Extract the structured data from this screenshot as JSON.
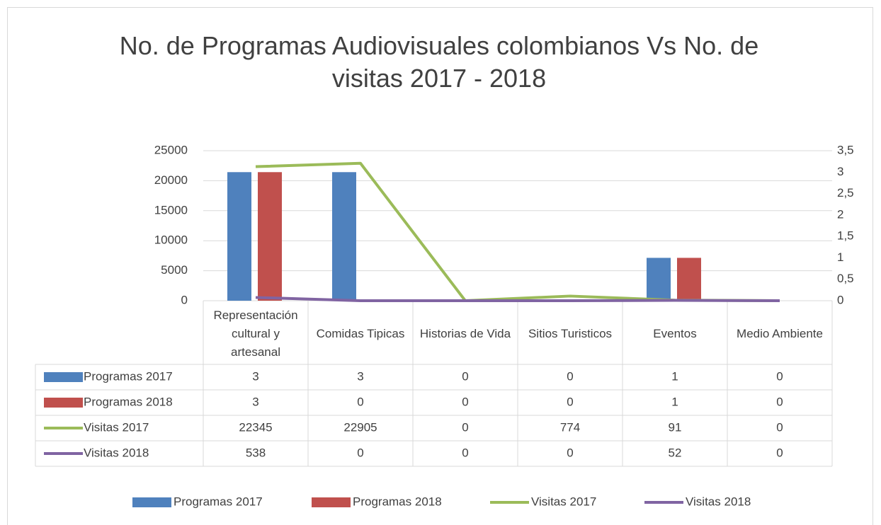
{
  "chart_data": {
    "type": "bar-line",
    "title": "No. de Programas Audiovisuales colombianos Vs No. de visitas 2017 - 2018",
    "categories": [
      "Representación cultural y artesanal",
      "Comidas Tipicas",
      "Historias de Vida",
      "Sitios Turisticos",
      "Eventos",
      "Medio Ambiente"
    ],
    "series": [
      {
        "name": "Programas 2017",
        "color": "#4f81bd",
        "type": "bar",
        "axis": "y2",
        "values": [
          3,
          3,
          0,
          0,
          1,
          0
        ]
      },
      {
        "name": "Programas 2018",
        "color": "#c0504d",
        "type": "bar",
        "axis": "y2",
        "values": [
          3,
          0,
          0,
          0,
          1,
          0
        ]
      },
      {
        "name": "Visitas 2017",
        "color": "#9bbb59",
        "type": "line",
        "axis": "y",
        "values": [
          22345,
          22905,
          0,
          774,
          91,
          0
        ]
      },
      {
        "name": "Visitas 2018",
        "color": "#8064a2",
        "type": "line",
        "axis": "y",
        "values": [
          538,
          0,
          0,
          0,
          52,
          0
        ]
      }
    ],
    "ylim": [
      0,
      25000
    ],
    "yticks": [
      0,
      5000,
      10000,
      15000,
      20000,
      25000
    ],
    "y2lim": [
      0,
      3.5
    ],
    "y2ticks": [
      0,
      {
        "value": 0.5,
        "label": "0,5"
      },
      1,
      {
        "value": 1.5,
        "label": "1,5"
      },
      2,
      {
        "value": 2.5,
        "label": "2,5"
      },
      3,
      {
        "value": 3.5,
        "label": "3,5"
      }
    ],
    "grid": true,
    "legend": "bottom"
  }
}
